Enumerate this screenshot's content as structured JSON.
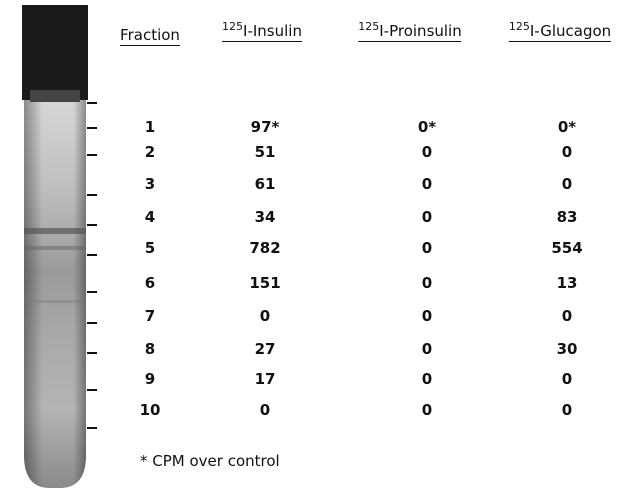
{
  "table": {
    "headers": [
      {
        "text": "Fraction"
      },
      {
        "sup": "125",
        "text": "I-Insulin"
      },
      {
        "sup": "125",
        "text": "I-Proinsulin"
      },
      {
        "sup": "125",
        "text": "I-Glucagon"
      }
    ],
    "rows": [
      [
        "1",
        "97*",
        "0*",
        "0*"
      ],
      [
        "2",
        "51",
        "0",
        "0"
      ],
      [
        "3",
        "61",
        "0",
        "0"
      ],
      [
        "4",
        "34",
        "0",
        "83"
      ],
      [
        "5",
        "782",
        "0",
        "554"
      ],
      [
        "6",
        "151",
        "0",
        "13"
      ],
      [
        "7",
        "0",
        "0",
        "0"
      ],
      [
        "8",
        "27",
        "0",
        "30"
      ],
      [
        "9",
        "17",
        "0",
        "0"
      ],
      [
        "10",
        "0",
        "0",
        "0"
      ]
    ],
    "footnote": "* CPM over control"
  }
}
